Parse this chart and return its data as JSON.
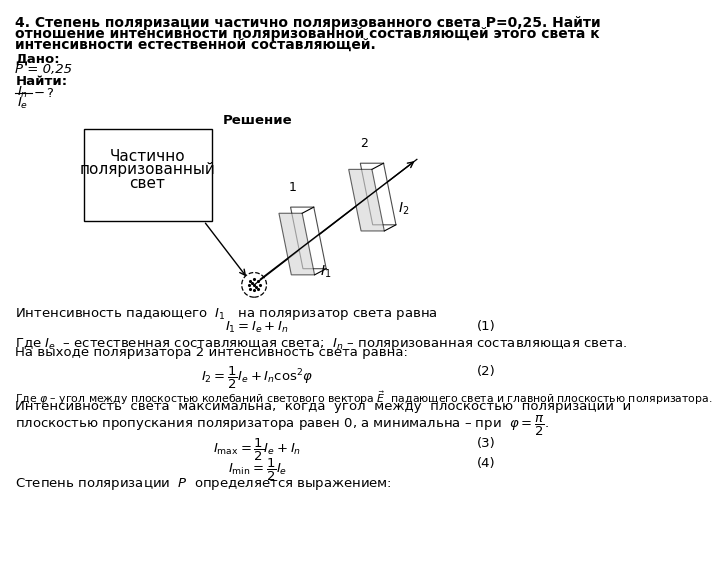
{
  "title_line1": "4. Степень поляризации частично поляризованного света P=0,25. Найти",
  "title_line2": "отношение интенсивности поляризованной составляющей этого света к",
  "title_line3": "интенсивности естественной составляющей.",
  "dado_label": "Дано:",
  "dado_p": "P = 0,25",
  "nayti_label": "Найти:",
  "reshenie_label": "Решение",
  "box_text_line1": "Частично",
  "box_text_line2": "поляризованный",
  "box_text_line3": "свет",
  "text1": "Интенсивность падающего  $I_1$   на поляризатор света равна",
  "eq1": "$I_1 = I_e + I_n$",
  "eq1_num": "(1)",
  "text2a": "Где $I_e$  – естественная составляющая света;  $I_n$ – поляризованная составляющая света.",
  "text2b": "На выходе поляризатора 2 интенсивность света равна:",
  "eq2": "$I_2 = \\dfrac{1}{2}I_e + I_n \\cos^2\\!\\varphi$",
  "eq2_num": "(2)",
  "text3a": "Где $\\varphi$ – угол между плоскостью колебаний светового вектора $\\vec{E}$  падающего света и главной плоскостью поляризатора.",
  "text3b": "Интенсивность  света  максимальна,  когда  угол  между  плоскостью  поляризации  и",
  "text3c": "плоскостью пропускания поляризатора равен 0, а минимальна – при  $\\varphi = \\dfrac{\\pi}{2}$.",
  "eq3": "$I_{\\max} = \\dfrac{1}{2}I_e + I_n$",
  "eq3_num": "(3)",
  "eq4": "$I_{\\min} = \\dfrac{1}{2}I_e$",
  "eq4_num": "(4)",
  "text4": "Степень поляризации  $P$  определяется выражением:",
  "bg_color": "#ffffff",
  "text_color": "#000000"
}
